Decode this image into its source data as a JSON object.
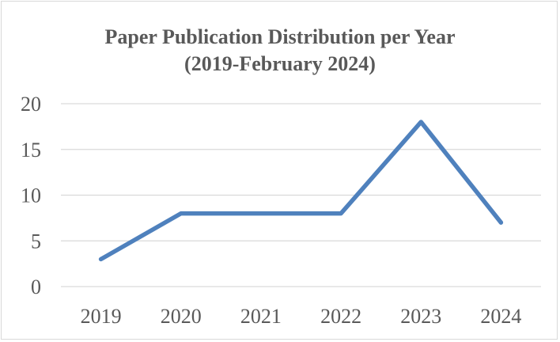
{
  "chart_data": {
    "type": "line",
    "title": "Paper Publication Distribution per Year",
    "subtitle": "(2019-February 2024)",
    "categories": [
      "2019",
      "2020",
      "2021",
      "2022",
      "2023",
      "2024"
    ],
    "series": [
      {
        "values": [
          3,
          8,
          8,
          8,
          18,
          7
        ],
        "color": "#4f81bd"
      }
    ],
    "xlabel": "",
    "ylabel": "",
    "ylim": [
      0,
      20
    ],
    "yticks": [
      0,
      5,
      10,
      15,
      20
    ],
    "grid": true,
    "legend": "none"
  }
}
